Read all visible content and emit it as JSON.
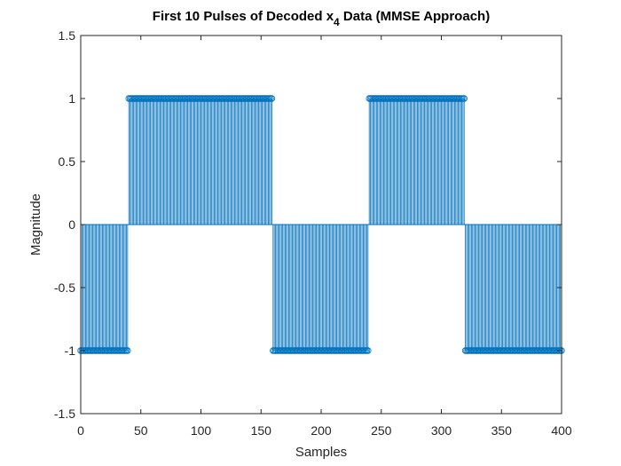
{
  "chart_data": {
    "type": "stem",
    "title": {
      "prefix": "First 10 Pulses of Decoded x",
      "subscript": "4",
      "suffix": " Data (MMSE Approach)"
    },
    "xlabel": "Samples",
    "ylabel": "Magnitude",
    "xlim": [
      0,
      400
    ],
    "ylim": [
      -1.5,
      1.5
    ],
    "xticks": [
      0,
      50,
      100,
      150,
      200,
      250,
      300,
      350,
      400
    ],
    "yticks": [
      -1.5,
      -1,
      -0.5,
      0,
      0.5,
      1,
      1.5
    ],
    "xtick_labels": [
      "0",
      "50",
      "100",
      "150",
      "200",
      "250",
      "300",
      "350",
      "400"
    ],
    "ytick_labels": [
      "-1.5",
      "-1",
      "-0.5",
      "0",
      "0.5",
      "1",
      "1.5"
    ],
    "grid": false,
    "box": true,
    "series": [
      {
        "color": "#0072BD",
        "marker": "circle-open",
        "x_start": 0,
        "x_end": 400,
        "x_step": 1,
        "pulses": [
          {
            "x_from": 0,
            "x_to": 40,
            "value": -1
          },
          {
            "x_from": 40,
            "x_to": 80,
            "value": 1
          },
          {
            "x_from": 80,
            "x_to": 120,
            "value": 1
          },
          {
            "x_from": 120,
            "x_to": 160,
            "value": 1
          },
          {
            "x_from": 160,
            "x_to": 200,
            "value": -1
          },
          {
            "x_from": 200,
            "x_to": 240,
            "value": -1
          },
          {
            "x_from": 240,
            "x_to": 280,
            "value": 1
          },
          {
            "x_from": 280,
            "x_to": 320,
            "value": 1
          },
          {
            "x_from": 320,
            "x_to": 360,
            "value": -1
          },
          {
            "x_from": 360,
            "x_to": 400,
            "value": -1
          }
        ]
      }
    ]
  }
}
